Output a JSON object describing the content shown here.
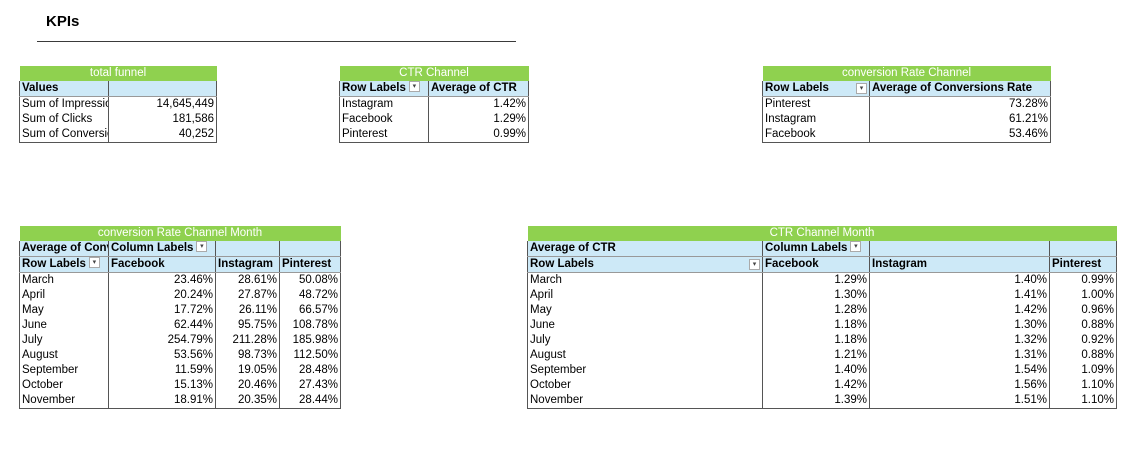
{
  "page": {
    "title": "KPIs"
  },
  "total_funnel": {
    "title": "total funnel",
    "header": "Values",
    "rows": [
      {
        "label": "Sum of Impressions",
        "value": "14,645,449"
      },
      {
        "label": "Sum of Clicks",
        "value": "181,586"
      },
      {
        "label": "Sum of Conversions",
        "value": "40,252"
      }
    ]
  },
  "ctr_channel": {
    "title": "CTR  Channel",
    "headers": [
      "Row Labels",
      "Average of CTR"
    ],
    "rows": [
      {
        "label": "Instagram",
        "value": "1.42%"
      },
      {
        "label": "Facebook",
        "value": "1.29%"
      },
      {
        "label": "Pinterest",
        "value": "0.99%"
      }
    ]
  },
  "conv_channel": {
    "title": "conversion Rate  Channel",
    "headers": [
      "Row Labels",
      "Average of Conversions Rate"
    ],
    "rows": [
      {
        "label": "Pinterest",
        "value": "73.28%"
      },
      {
        "label": "Instagram",
        "value": "61.21%"
      },
      {
        "label": "Facebook",
        "value": "53.46%"
      }
    ]
  },
  "conv_month": {
    "title": "conversion Rate  Channel  Month",
    "value_header": "Average of Conversions Rate",
    "column_labels": "Column Labels",
    "row_labels": "Row Labels",
    "columns": [
      "Facebook",
      "Instagram",
      "Pinterest"
    ],
    "rows": [
      {
        "month": "March",
        "values": [
          "23.46%",
          "28.61%",
          "50.08%"
        ]
      },
      {
        "month": "April",
        "values": [
          "20.24%",
          "27.87%",
          "48.72%"
        ]
      },
      {
        "month": "May",
        "values": [
          "17.72%",
          "26.11%",
          "66.57%"
        ]
      },
      {
        "month": "June",
        "values": [
          "62.44%",
          "95.75%",
          "108.78%"
        ]
      },
      {
        "month": "July",
        "values": [
          "254.79%",
          "211.28%",
          "185.98%"
        ]
      },
      {
        "month": "August",
        "values": [
          "53.56%",
          "98.73%",
          "112.50%"
        ]
      },
      {
        "month": "September",
        "values": [
          "11.59%",
          "19.05%",
          "28.48%"
        ]
      },
      {
        "month": "October",
        "values": [
          "15.13%",
          "20.46%",
          "27.43%"
        ]
      },
      {
        "month": "November",
        "values": [
          "18.91%",
          "20.35%",
          "28.44%"
        ]
      }
    ]
  },
  "ctr_month": {
    "title": "CTR  Channel  Month",
    "value_header": "Average of CTR",
    "column_labels": "Column Labels",
    "row_labels": "Row Labels",
    "columns": [
      "Facebook",
      "Instagram",
      "Pinterest"
    ],
    "rows": [
      {
        "month": "March",
        "values": [
          "1.29%",
          "1.40%",
          "0.99%"
        ]
      },
      {
        "month": "April",
        "values": [
          "1.30%",
          "1.41%",
          "1.00%"
        ]
      },
      {
        "month": "May",
        "values": [
          "1.28%",
          "1.42%",
          "0.96%"
        ]
      },
      {
        "month": "June",
        "values": [
          "1.18%",
          "1.30%",
          "0.88%"
        ]
      },
      {
        "month": "July",
        "values": [
          "1.18%",
          "1.32%",
          "0.92%"
        ]
      },
      {
        "month": "August",
        "values": [
          "1.21%",
          "1.31%",
          "0.88%"
        ]
      },
      {
        "month": "September",
        "values": [
          "1.40%",
          "1.54%",
          "1.09%"
        ]
      },
      {
        "month": "October",
        "values": [
          "1.42%",
          "1.56%",
          "1.10%"
        ]
      },
      {
        "month": "November",
        "values": [
          "1.39%",
          "1.51%",
          "1.10%"
        ]
      }
    ]
  }
}
